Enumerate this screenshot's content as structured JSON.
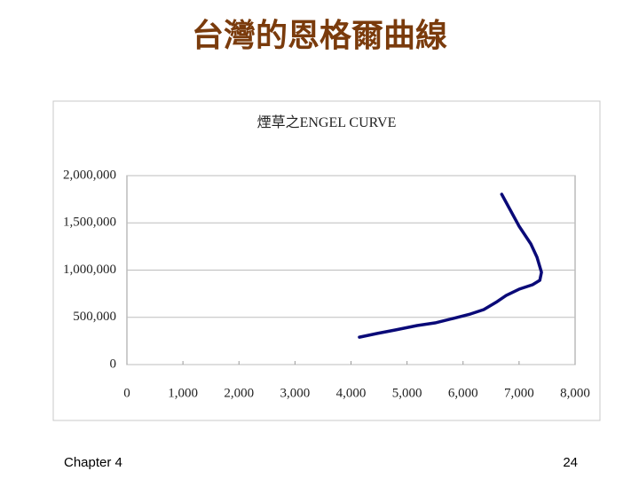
{
  "slide": {
    "title": "台灣的恩格爾曲線",
    "footer": "Chapter 4",
    "page_number": "24"
  },
  "chart_data": {
    "type": "line",
    "title": "煙草之ENGEL CURVE",
    "x": [
      4150,
      4470,
      4790,
      5180,
      5500,
      5820,
      6130,
      6370,
      6610,
      6770,
      7000,
      7240,
      7370,
      7400,
      7320,
      7210,
      7000,
      6690
    ],
    "series": [
      {
        "color": "#0a0a78",
        "values": [
          290000,
          330000,
          366000,
          413000,
          441000,
          488000,
          535000,
          582000,
          667000,
          732000,
          798000,
          845000,
          892000,
          977000,
          1136000,
          1277000,
          1465000,
          1803000
        ]
      }
    ],
    "xlim": [
      0,
      8000
    ],
    "xticks": [
      0,
      {
        "value": 1000,
        "label": "1,000"
      },
      {
        "value": 2000,
        "label": "2,000"
      },
      {
        "value": 3000,
        "label": "3,000"
      },
      {
        "value": 4000,
        "label": "4,000"
      },
      {
        "value": 5000,
        "label": "5,000"
      },
      {
        "value": 6000,
        "label": "6,000"
      },
      {
        "value": 7000,
        "label": "7,000"
      },
      {
        "value": 8000,
        "label": "8,000"
      }
    ],
    "ylim": [
      0,
      2000000
    ],
    "yticks": [
      0,
      {
        "value": 500000,
        "label": "500,000"
      },
      {
        "value": 1000000,
        "label": "1,000,000"
      },
      {
        "value": 1500000,
        "label": "1,500,000"
      },
      {
        "value": 2000000,
        "label": "2,000,000"
      }
    ],
    "grid": true
  }
}
